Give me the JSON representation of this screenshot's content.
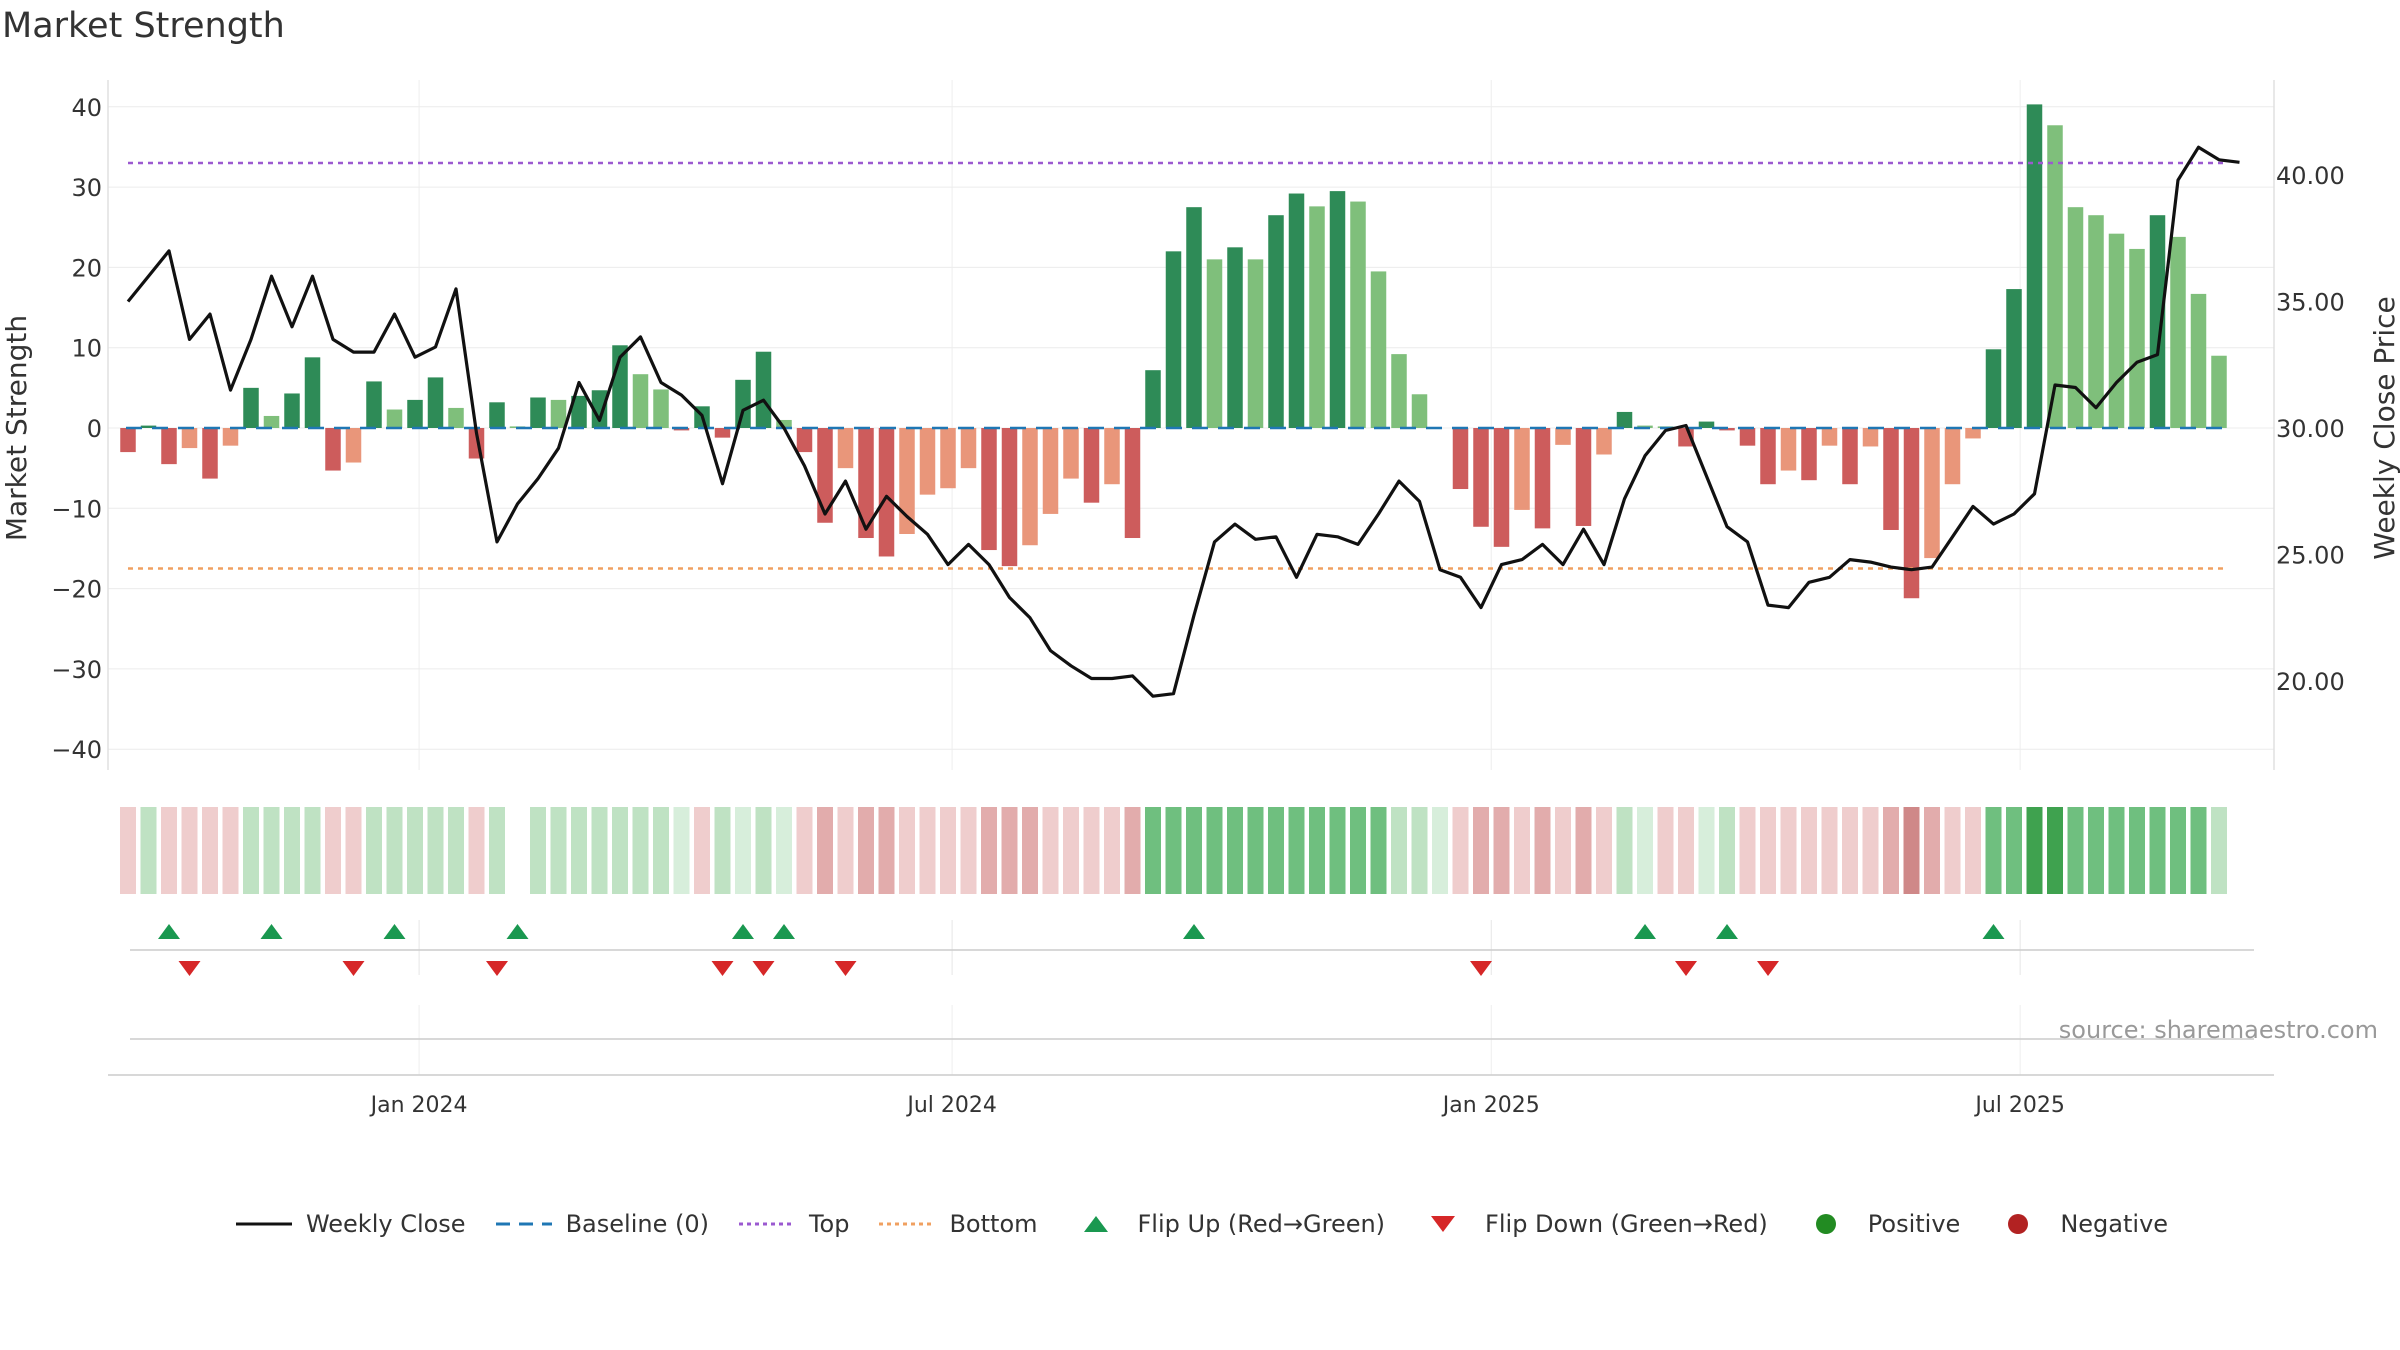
{
  "chart_data": {
    "type": "bar",
    "title": "Market Strength",
    "source": "source: sharemaestro.com",
    "ylabel": "Market Strength",
    "y2label": "Weekly Close Price",
    "ylim": [
      -44,
      44
    ],
    "y2lim": [
      17.2,
      42.9
    ],
    "y_ticks": [
      "40",
      "30",
      "20",
      "10",
      "0",
      "−10",
      "−20",
      "−30",
      "−40"
    ],
    "y_tick_values": [
      40,
      30,
      20,
      10,
      0,
      -10,
      -20,
      -30,
      -40
    ],
    "y2_ticks": [
      "40.00",
      "35.00",
      "30.00",
      "25.00",
      "20.00"
    ],
    "y2_tick_values": [
      40,
      35,
      30,
      25,
      20
    ],
    "x_ticks": [
      "Jan 2024",
      "Jul 2024",
      "Jan 2025",
      "Jul 2025"
    ],
    "x_tick_weeks": [
      14.2,
      40.2,
      66.5,
      92.3
    ],
    "top_line": 33,
    "bottom_line": -17.5,
    "baseline": 0,
    "colors": {
      "green_dark": "#2e8b57",
      "green_light": "#7fbf7b",
      "red_dark": "#cd5c5c",
      "red_light": "#e9967a",
      "line": "#111111",
      "top": "#9b59d0",
      "bottom": "#f0a060",
      "baseline": "#1f77b4",
      "flip_up": "#1a9850",
      "flip_down": "#d62728",
      "positive": "#228b22",
      "negative": "#b22222"
    },
    "series": [
      {
        "name": "Market Strength",
        "values": [
          -3,
          0.3,
          -4.5,
          -2.5,
          -6.3,
          -2.2,
          5,
          1.5,
          4.3,
          8.8,
          -5.3,
          -4.3,
          5.8,
          2.3,
          3.5,
          6.3,
          2.5,
          -3.8,
          3.2,
          0.2,
          3.8,
          3.5,
          4,
          4.7,
          10.3,
          6.7,
          4.8,
          -0.3,
          2.7,
          -1.2,
          6,
          9.5,
          1,
          -3,
          -11.8,
          -5,
          -13.7,
          -16,
          -13.2,
          -8.3,
          -7.5,
          -5,
          -15.2,
          -17.2,
          -14.6,
          -10.7,
          -6.3,
          -9.3,
          -7,
          -13.7,
          7.2,
          22,
          27.5,
          21,
          22.5,
          21,
          26.5,
          29.2,
          27.6,
          29.5,
          28.2,
          19.5,
          9.2,
          4.2,
          0,
          -7.6,
          -12.3,
          -14.8,
          -10.2,
          -12.5,
          -2.1,
          -12.2,
          -3.3,
          2,
          0.3,
          0.2,
          -2.3,
          0.8,
          -0.3,
          -2.2,
          -7,
          -5.3,
          -6.5,
          -2.2,
          -7,
          -2.3,
          -12.7,
          -21.2,
          -16.2,
          -7,
          -1.3,
          9.8,
          17.3,
          40.3,
          37.7,
          27.5,
          26.5,
          24.2,
          22.3,
          26.5,
          23.8,
          16.7,
          9
        ]
      },
      {
        "name": "Weekly Close",
        "values": [
          35,
          36,
          37,
          33.5,
          34.5,
          31.5,
          33.5,
          36,
          34,
          36,
          33.5,
          33,
          33,
          34.5,
          32.8,
          33.2,
          35.5,
          29.8,
          25.5,
          27,
          28,
          29.2,
          31.8,
          30.3,
          32.8,
          33.6,
          31.8,
          31.3,
          30.5,
          27.8,
          30.7,
          31.1,
          30,
          28.5,
          26.6,
          27.9,
          26,
          27.3,
          26.5,
          25.8,
          24.6,
          25.4,
          24.6,
          23.3,
          22.5,
          21.2,
          20.6,
          20.1,
          20.1,
          20.2,
          19.4,
          19.5,
          22.6,
          25.5,
          26.2,
          25.6,
          25.7,
          24.1,
          25.8,
          25.7,
          25.4,
          26.6,
          27.9,
          27.1,
          24.4,
          24.1,
          22.9,
          24.6,
          24.8,
          25.4,
          24.6,
          26,
          24.6,
          27.2,
          28.9,
          29.9,
          30.1,
          28.1,
          26.1,
          25.5,
          23,
          22.9,
          23.9,
          24.1,
          24.8,
          24.7,
          24.5,
          24.4,
          24.5,
          25.7,
          26.9,
          26.2,
          26.6,
          27.4,
          31.7,
          31.6,
          30.8,
          31.8,
          32.6,
          32.9,
          39.8,
          41.1,
          40.6,
          40.5
        ]
      }
    ],
    "strength_strip": [
      "light-red",
      "light-green",
      "light-red",
      "light-red",
      "light-red",
      "light-red",
      "light-green",
      "light-green",
      "light-green",
      "light-green",
      "light-red",
      "light-red",
      "light-green",
      "light-green",
      "light-green",
      "light-green",
      "light-green",
      "light-red",
      "light-green",
      "none",
      "light-green",
      "light-green",
      "light-green",
      "light-green",
      "light-green",
      "light-green",
      "light-green",
      "faint-green",
      "light-red",
      "light-green",
      "faint-green",
      "light-green",
      "faint-green",
      "light-red",
      "mid-red",
      "light-red",
      "mid-red",
      "mid-red",
      "light-red",
      "light-red",
      "light-red",
      "light-red",
      "mid-red",
      "mid-red",
      "mid-red",
      "light-red",
      "light-red",
      "light-red",
      "light-red",
      "mid-red",
      "mid-green",
      "mid-green",
      "mid-green",
      "mid-green",
      "mid-green",
      "mid-green",
      "mid-green",
      "mid-green",
      "mid-green",
      "mid-green",
      "mid-green",
      "mid-green",
      "light-green",
      "light-green",
      "faint-green",
      "light-red",
      "mid-red",
      "mid-red",
      "light-red",
      "mid-red",
      "light-red",
      "mid-red",
      "light-red",
      "light-green",
      "faint-green",
      "light-red",
      "light-red",
      "faint-green",
      "light-green",
      "light-red",
      "light-red",
      "light-red",
      "light-red",
      "light-red",
      "light-red",
      "light-red",
      "mid-red",
      "dark-red",
      "mid-red",
      "light-red",
      "light-red",
      "mid-green",
      "mid-green",
      "dark-green",
      "dark-green",
      "mid-green",
      "mid-green",
      "mid-green",
      "mid-green",
      "mid-green",
      "mid-green",
      "mid-green",
      "light-green"
    ],
    "flip_up_weeks": [
      2,
      7,
      13,
      19,
      30,
      32,
      52,
      74,
      78,
      91
    ],
    "flip_down_weeks": [
      3,
      11,
      18,
      29,
      31,
      35,
      66,
      76,
      80
    ],
    "legend": [
      {
        "label": "Weekly Close",
        "symbol": "solid-line",
        "color": "#111111"
      },
      {
        "label": "Baseline (0)",
        "symbol": "dashed-line",
        "color": "#1f77b4"
      },
      {
        "label": "Top",
        "symbol": "dotted-line",
        "color": "#9b59d0"
      },
      {
        "label": "Bottom",
        "symbol": "dotted-line",
        "color": "#f0a060"
      },
      {
        "label": "Flip Up (Red→Green)",
        "symbol": "triangle-up",
        "color": "#1a9850"
      },
      {
        "label": "Flip Down (Green→Red)",
        "symbol": "triangle-down",
        "color": "#d62728"
      },
      {
        "label": "Positive",
        "symbol": "circle",
        "color": "#228b22"
      },
      {
        "label": "Negative",
        "symbol": "circle",
        "color": "#b22222"
      }
    ]
  }
}
